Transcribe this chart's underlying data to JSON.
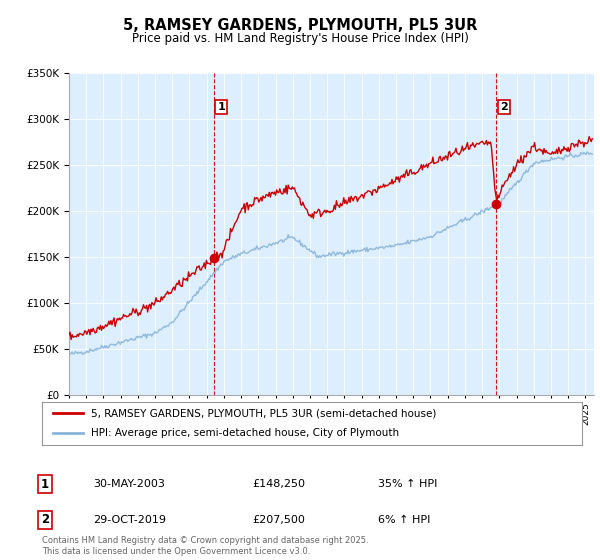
{
  "title": "5, RAMSEY GARDENS, PLYMOUTH, PL5 3UR",
  "subtitle": "Price paid vs. HM Land Registry's House Price Index (HPI)",
  "legend_line1": "5, RAMSEY GARDENS, PLYMOUTH, PL5 3UR (semi-detached house)",
  "legend_line2": "HPI: Average price, semi-detached house, City of Plymouth",
  "annotation1_date": "30-MAY-2003",
  "annotation1_price": "£148,250",
  "annotation1_hpi": "35% ↑ HPI",
  "annotation2_date": "29-OCT-2019",
  "annotation2_price": "£207,500",
  "annotation2_hpi": "6% ↑ HPI",
  "footer": "Contains HM Land Registry data © Crown copyright and database right 2025.\nThis data is licensed under the Open Government Licence v3.0.",
  "sale1_x": 2003.41,
  "sale1_y": 148250,
  "sale2_x": 2019.83,
  "sale2_y": 207500,
  "ylim": [
    0,
    350000
  ],
  "xlim": [
    1995,
    2025.5
  ],
  "red_color": "#cc0000",
  "blue_color": "#88b4d8",
  "plot_bg_color": "#ddeeff",
  "grid_color": "#ffffff",
  "background_color": "#ffffff",
  "annotation_box_color": "#cc0000"
}
